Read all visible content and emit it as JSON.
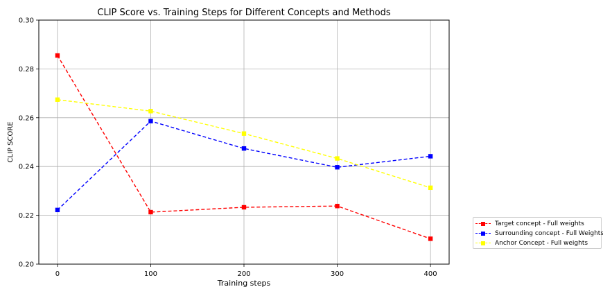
{
  "chart_data": {
    "type": "line",
    "title": "CLIP Score vs. Training Steps for Different Concepts and Methods",
    "xlabel": "Training steps",
    "ylabel": "CLIP SCORE",
    "x": [
      0,
      100,
      200,
      300,
      400
    ],
    "xticks": [
      "0",
      "100",
      "200",
      "300",
      "400"
    ],
    "xlim": [
      -20,
      420
    ],
    "yticks": [
      "0.20",
      "0.22",
      "0.24",
      "0.26",
      "0.28",
      "0.30"
    ],
    "ylim": [
      0.2,
      0.3
    ],
    "grid": true,
    "legend_position": "outside-bottom-right",
    "series": [
      {
        "name": "Target concept - Full weights",
        "color": "#ff0000",
        "marker": "square",
        "linestyle": "dashed",
        "values": [
          0.2855,
          0.2213,
          0.2233,
          0.2238,
          0.2104
        ]
      },
      {
        "name": "Surrounding concept - Full Weights",
        "color": "#0000ff",
        "marker": "square",
        "linestyle": "dashed",
        "values": [
          0.2222,
          0.2586,
          0.2474,
          0.2397,
          0.2442
        ]
      },
      {
        "name": "Anchor Concept - Full weights",
        "color": "#ffff00",
        "marker": "square",
        "linestyle": "dashed",
        "values": [
          0.2674,
          0.2627,
          0.2535,
          0.2433,
          0.2313
        ]
      }
    ]
  }
}
